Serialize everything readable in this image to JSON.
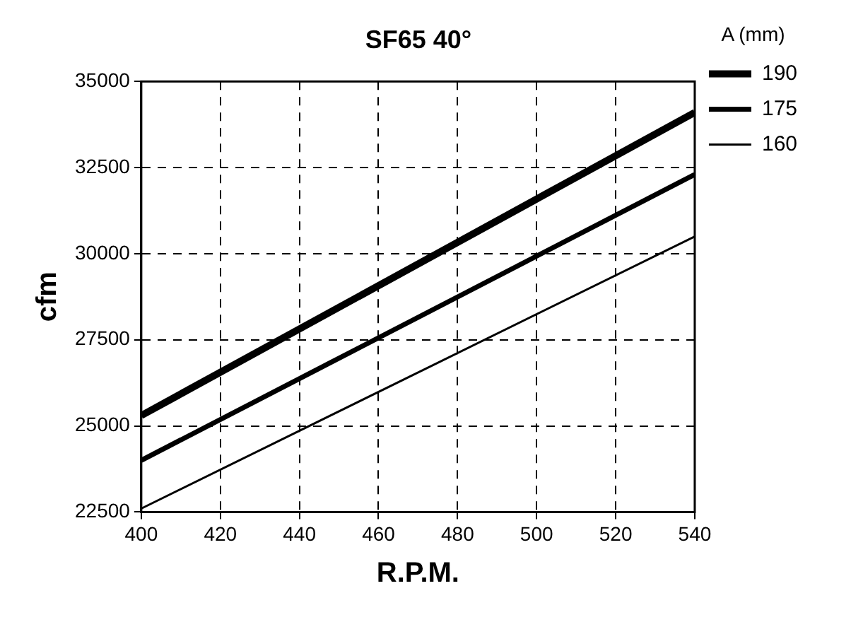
{
  "chart_data": {
    "type": "line",
    "title": "SF65 40°",
    "xlabel": "R.P.M.",
    "ylabel": "cfm",
    "legend_title": "A (mm)",
    "x": [
      400,
      540
    ],
    "series": [
      {
        "name": "190",
        "color": "#000000",
        "values": [
          25300,
          34100
        ]
      },
      {
        "name": "175",
        "color": "#000000",
        "values": [
          24000,
          32300
        ]
      },
      {
        "name": "160",
        "color": "#000000",
        "values": [
          22600,
          30500
        ]
      }
    ],
    "xlim": [
      400,
      540
    ],
    "xticks": [
      400,
      420,
      440,
      460,
      480,
      500,
      520,
      540
    ],
    "ylim": [
      22500,
      35000
    ],
    "yticks": [
      22500,
      25000,
      27500,
      30000,
      32500,
      35000
    ],
    "grid": true,
    "line_style": "solid",
    "marker": "none",
    "legend": "right"
  }
}
